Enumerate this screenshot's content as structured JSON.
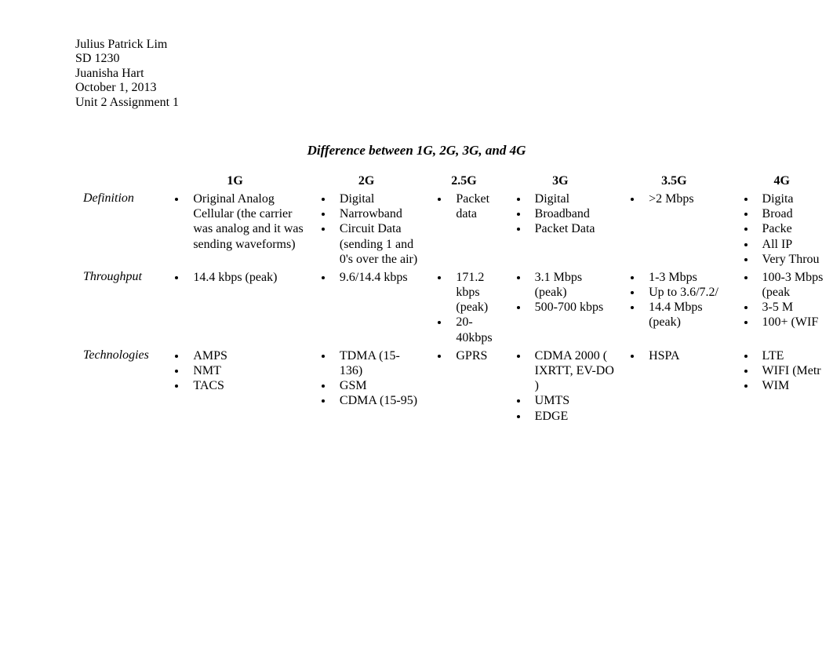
{
  "header": {
    "name": "Julius Patrick Lim",
    "course": "SD 1230",
    "instructor": "Juanisha Hart",
    "date": "October 1, 2013",
    "assignment": "Unit 2 Assignment 1"
  },
  "title": "Difference between 1G, 2G, 3G, and 4G",
  "columns": [
    "1G",
    "2G",
    "2.5G",
    "3G",
    "3.5G",
    "4G"
  ],
  "rows": {
    "definition": {
      "label": "Definition",
      "g1": [
        "Original Analog Cellular (the carrier was analog and it was sending waveforms)"
      ],
      "g2": [
        "Digital",
        "Narrowband",
        "Circuit Data (sending 1 and 0's over the air)"
      ],
      "g25": [
        "Packet data"
      ],
      "g3": [
        "Digital",
        "Broadband",
        "Packet Data"
      ],
      "g35": [
        ">2 Mbps"
      ],
      "g4": [
        "Digita",
        "Broad",
        "Packe",
        "All IP",
        "Very Throu"
      ]
    },
    "throughput": {
      "label": "Throughput",
      "g1": [
        "14.4 kbps (peak)"
      ],
      "g2": [
        "9.6/14.4 kbps"
      ],
      "g25": [
        "171.2 kbps (peak)",
        "20-40kbps"
      ],
      "g3": [
        "3.1 Mbps (peak)",
        "500-700 kbps"
      ],
      "g35": [
        "1-3 Mbps",
        "Up to 3.6/7.2/",
        "14.4 Mbps (peak)"
      ],
      "g4": [
        "100-3 Mbps (peak",
        "3-5 M",
        "100+ (WIF"
      ]
    },
    "technologies": {
      "label": "Technologies",
      "g1": [
        "AMPS",
        "NMT",
        "TACS"
      ],
      "g2": [
        "TDMA (15-136)",
        "GSM",
        "CDMA (15-95)"
      ],
      "g25": [
        "GPRS"
      ],
      "g3": [
        "CDMA 2000 ( IXRTT, EV-DO )",
        "UMTS",
        "EDGE"
      ],
      "g35": [
        "HSPA"
      ],
      "g4": [
        "LTE",
        "WIFI (Metr",
        "WIM"
      ]
    }
  }
}
